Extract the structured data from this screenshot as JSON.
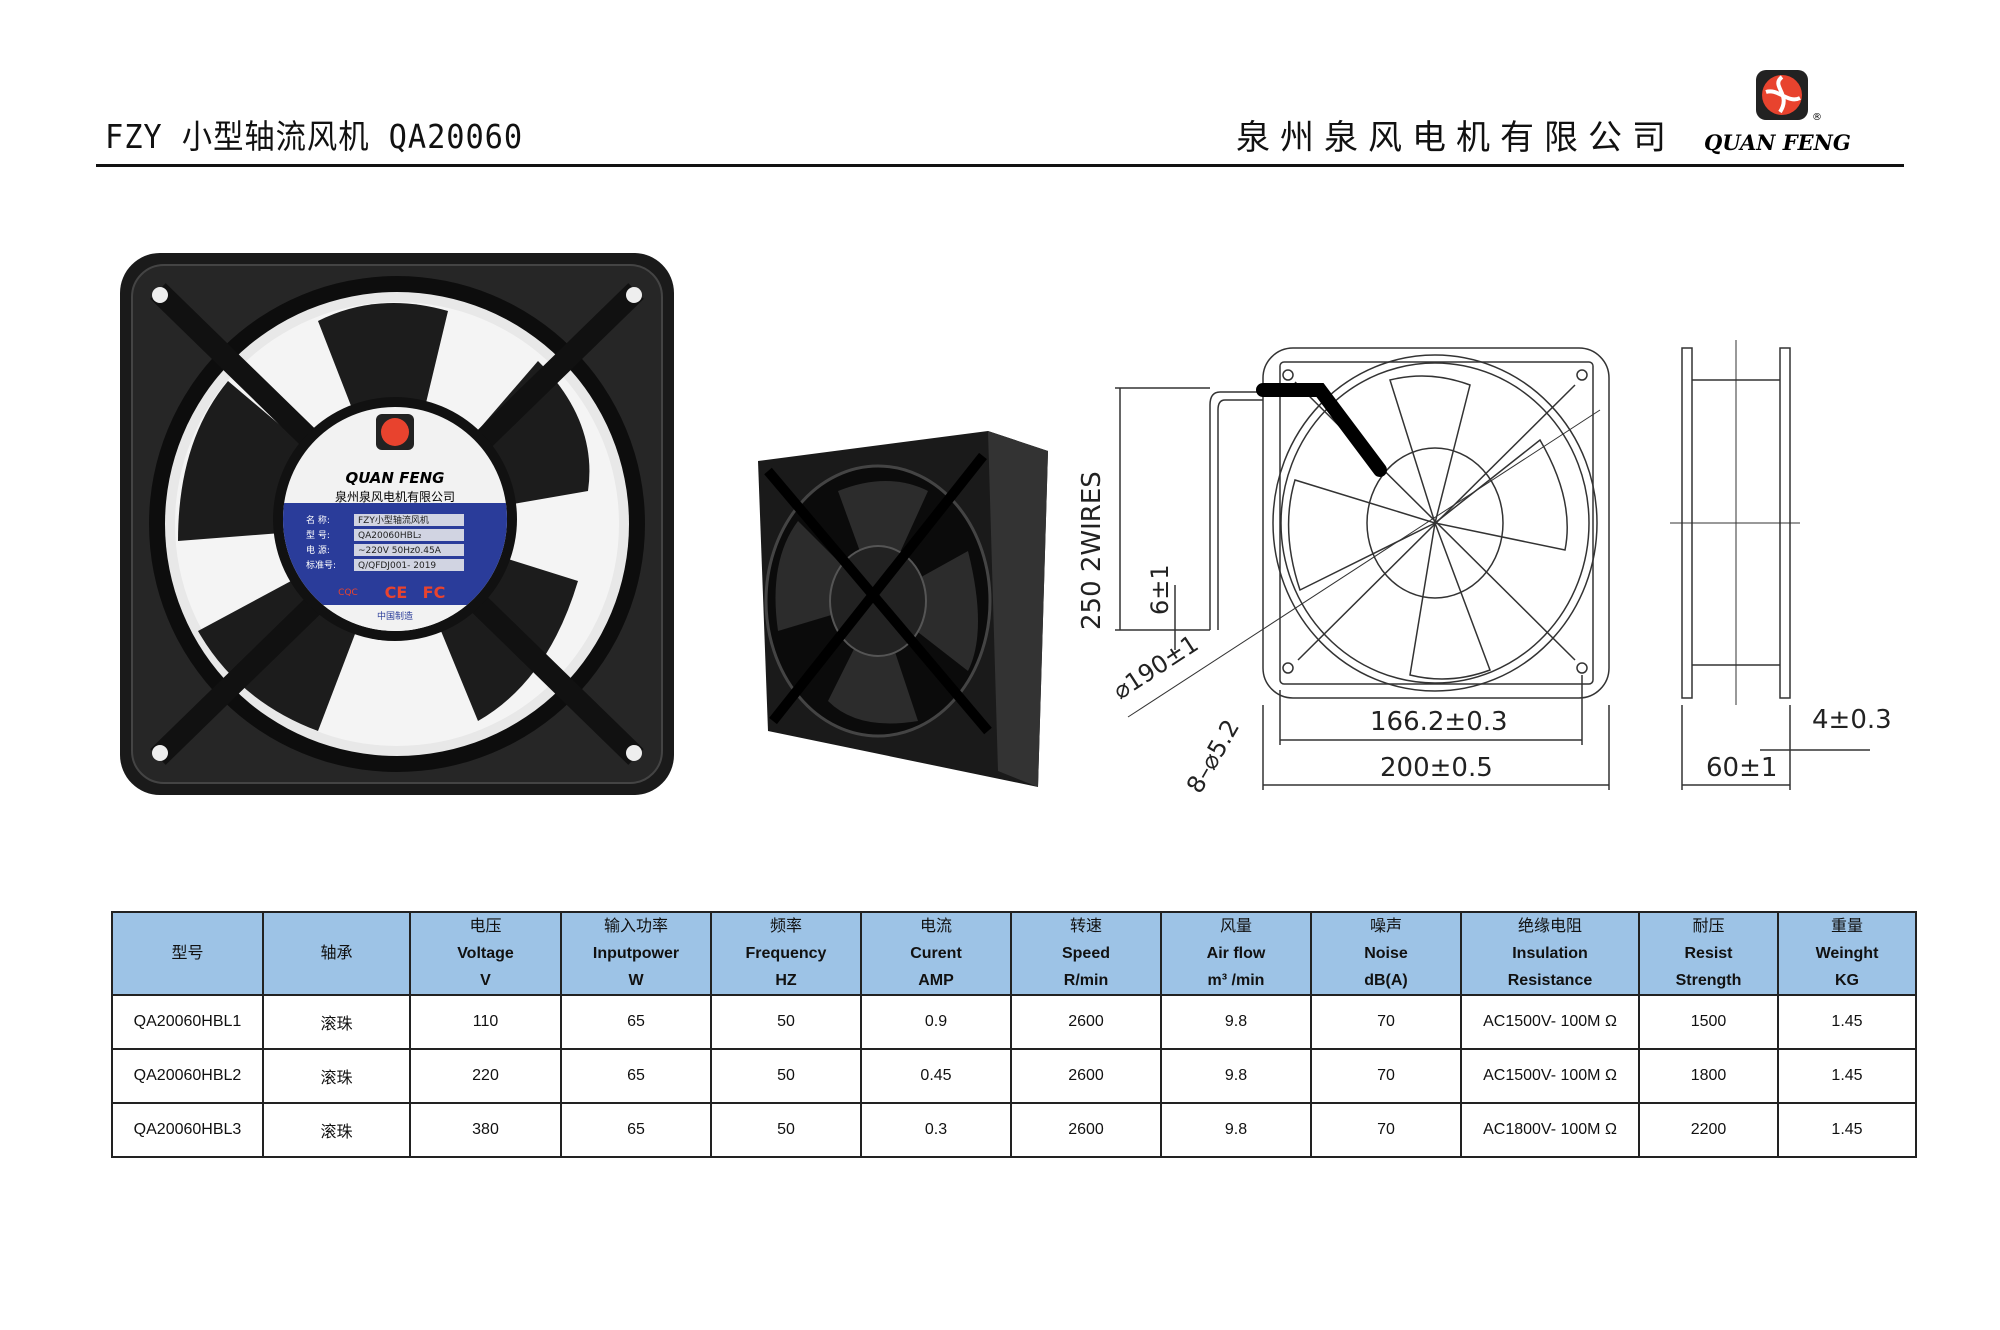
{
  "header": {
    "title": "FZY 小型轴流风机 QA20060",
    "company": "泉州泉风电机有限公司",
    "brand": "QUAN FENG",
    "registered": "®"
  },
  "colors": {
    "header_bg": "#9DC3E6",
    "logo_red": "#E8432E",
    "text": "#111111"
  },
  "fan_label": {
    "brand": "QUAN FENG",
    "company": "泉州泉风电机有限公司",
    "rows": [
      {
        "key": "名  称:",
        "value": "FZY小型轴流风机"
      },
      {
        "key": "型  号:",
        "value": "QA20060HBL₂"
      },
      {
        "key": "电  源:",
        "value": "~220V 50Hz0.45A"
      },
      {
        "key": "标准号:",
        "value": "Q/QFDJ001- 2019"
      }
    ],
    "marks": [
      "CQC",
      "CE",
      "FC"
    ],
    "made_in": "中国制造"
  },
  "drawing": {
    "wires": "250  2WIRES",
    "strip": "6±1",
    "diameter": "⌀190±1",
    "holes": "8–⌀5.2",
    "hole_spacing": "166.2±0.3",
    "width": "200±0.5",
    "depth": "60±1",
    "flange": "4±0.3"
  },
  "table": {
    "headers": [
      [
        "型号"
      ],
      [
        "轴承"
      ],
      [
        "电压",
        "Voltage",
        "V"
      ],
      [
        "输入功率",
        "Inputpower",
        "W"
      ],
      [
        "频率",
        "Frequency",
        "HZ"
      ],
      [
        "电流",
        "Curent",
        "AMP"
      ],
      [
        "转速",
        "Speed",
        "R/min"
      ],
      [
        "风量",
        "Air flow",
        "m³ /min"
      ],
      [
        "噪声",
        "Noise",
        "dB(A)"
      ],
      [
        "绝缘电阻",
        "Insulation",
        "Resistance"
      ],
      [
        "耐压",
        "Resist",
        "Strength"
      ],
      [
        "重量",
        "Weinght",
        "KG"
      ]
    ],
    "rows": [
      [
        "QA20060HBL1",
        "滚珠",
        "110",
        "65",
        "50",
        "0.9",
        "2600",
        "9.8",
        "70",
        "AC1500V- 100M Ω",
        "1500",
        "1.45"
      ],
      [
        "QA20060HBL2",
        "滚珠",
        "220",
        "65",
        "50",
        "0.45",
        "2600",
        "9.8",
        "70",
        "AC1500V- 100M Ω",
        "1800",
        "1.45"
      ],
      [
        "QA20060HBL3",
        "滚珠",
        "380",
        "65",
        "50",
        "0.3",
        "2600",
        "9.8",
        "70",
        "AC1800V- 100M Ω",
        "2200",
        "1.45"
      ]
    ]
  }
}
